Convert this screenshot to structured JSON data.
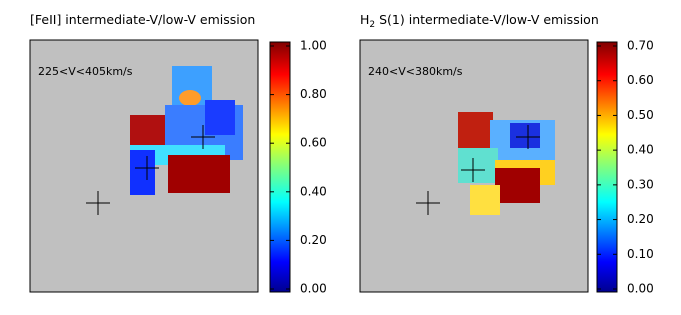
{
  "panels": [
    {
      "title": [
        "[FeII] intermediate-V/low-V emission"
      ],
      "velocity_label": "225<V<405km/s",
      "colorbar": {
        "lim": [
          0,
          1
        ],
        "ticks": [
          {
            "value": 0,
            "label": "0.00"
          },
          {
            "value": 0.2,
            "label": "0.20"
          },
          {
            "value": 0.4,
            "label": "0.40"
          },
          {
            "value": 0.6,
            "label": "0.60"
          },
          {
            "value": 0.8,
            "label": "0.80"
          },
          {
            "value": 1,
            "label": "1.00"
          }
        ]
      }
    },
    {
      "title": [
        "H",
        "2",
        " S(1) intermediate-V/low-V emission"
      ],
      "velocity_label": "240<V<380km/s",
      "colorbar": {
        "lim": [
          0,
          0.7
        ],
        "ticks": [
          {
            "value": 0,
            "label": "0.00"
          },
          {
            "value": 0.1,
            "label": "0.10"
          },
          {
            "value": 0.2,
            "label": "0.20"
          },
          {
            "value": 0.3,
            "label": "0.30"
          },
          {
            "value": 0.4,
            "label": "0.40"
          },
          {
            "value": 0.5,
            "label": "0.50"
          },
          {
            "value": 0.6,
            "label": "0.60"
          },
          {
            "value": 0.7,
            "label": "0.70"
          }
        ]
      }
    }
  ]
}
